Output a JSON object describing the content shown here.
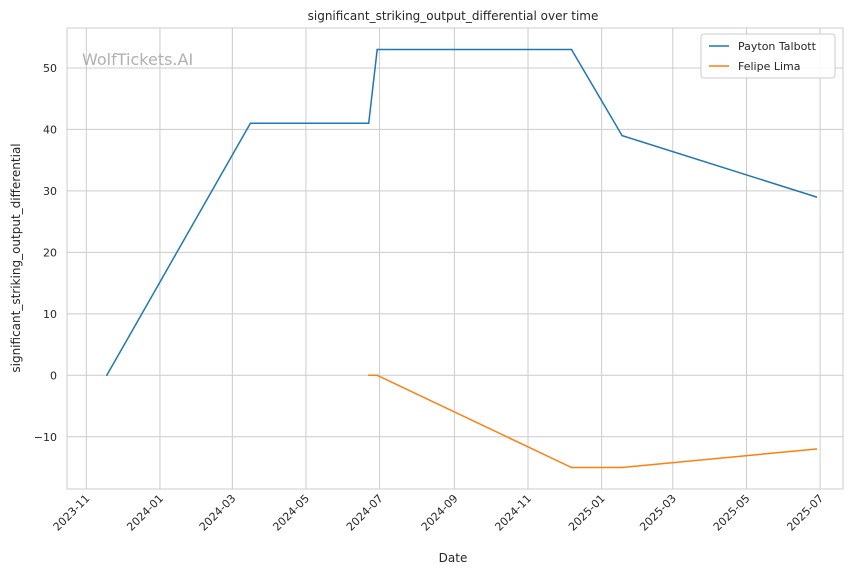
{
  "chart_data": {
    "type": "line",
    "title": "significant_striking_output_differential over time",
    "xlabel": "Date",
    "ylabel": "significant_striking_output_differential",
    "watermark": "WolfTickets.AI",
    "x_ticks": [
      "2023-11",
      "2024-01",
      "2024-03",
      "2024-05",
      "2024-07",
      "2024-09",
      "2024-11",
      "2025-01",
      "2025-03",
      "2025-05",
      "2025-07"
    ],
    "y_ticks": [
      -10,
      0,
      10,
      20,
      30,
      40,
      50
    ],
    "xlim": [
      "2023-10-16",
      "2025-07-20"
    ],
    "ylim": [
      -18.5,
      56.5
    ],
    "grid": true,
    "legend_position": "top-right",
    "series": [
      {
        "name": "Payton Talbott",
        "color": "#1f77b4",
        "points": [
          {
            "x": "2023-11-18",
            "y": 0
          },
          {
            "x": "2024-03-16",
            "y": 41
          },
          {
            "x": "2024-06-22",
            "y": 41
          },
          {
            "x": "2024-06-29",
            "y": 53
          },
          {
            "x": "2024-12-07",
            "y": 53
          },
          {
            "x": "2025-01-18",
            "y": 39
          },
          {
            "x": "2025-06-28",
            "y": 29
          }
        ]
      },
      {
        "name": "Felipe Lima",
        "color": "#ff7f0e",
        "points": [
          {
            "x": "2024-06-22",
            "y": 0
          },
          {
            "x": "2024-06-29",
            "y": 0
          },
          {
            "x": "2024-12-07",
            "y": -15
          },
          {
            "x": "2025-01-18",
            "y": -15
          },
          {
            "x": "2025-06-28",
            "y": -12
          }
        ]
      }
    ]
  }
}
